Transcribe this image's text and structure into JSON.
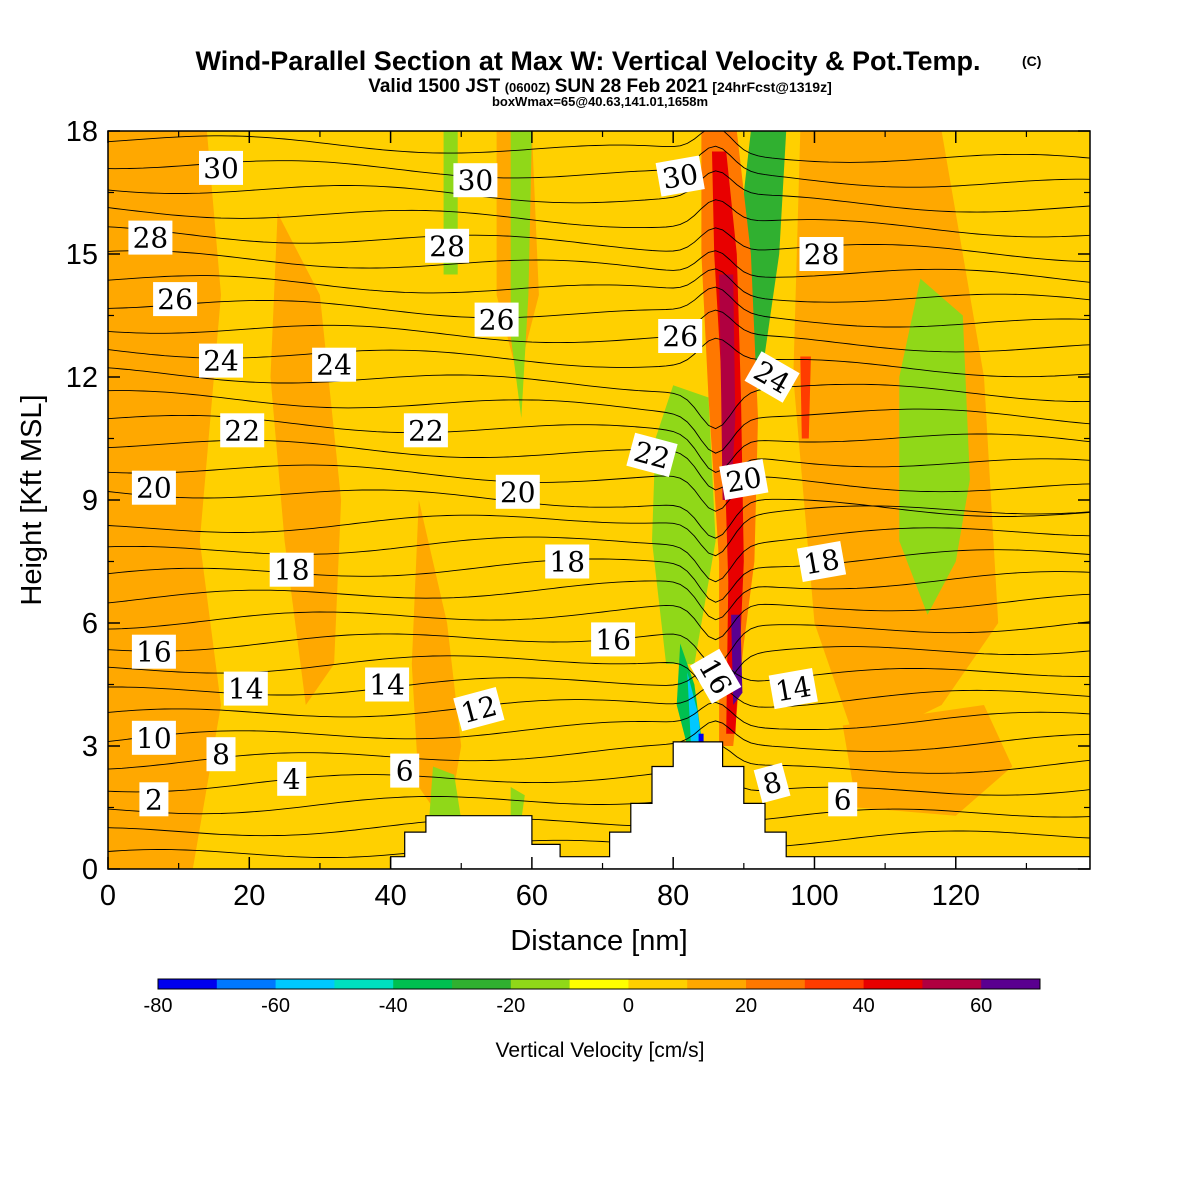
{
  "header": {
    "title": "Wind-Parallel Section at Max W: Vertical Velocity & Pot.Temp.",
    "title_unit": "(C)",
    "subtitle_main": "Valid 1500 JST",
    "subtitle_utc": "(0600Z)",
    "subtitle_date": "SUN 28 Feb 2021",
    "subtitle_fcst": "[24hrFcst@1319z]",
    "info": "boxWmax=65@40.63,141.01,1658m"
  },
  "chart_data": {
    "type": "heatmap",
    "title": "Wind-Parallel Section at Max W: Vertical Velocity & Pot.Temp. (C)",
    "xlabel": "Distance [nm]",
    "ylabel": "Height [Kft MSL]",
    "xlim": [
      0,
      139
    ],
    "ylim": [
      0,
      18
    ],
    "x_ticks": [
      "0",
      "20",
      "40",
      "60",
      "80",
      "100",
      "120"
    ],
    "y_ticks": [
      "0",
      "3",
      "6",
      "9",
      "12",
      "15",
      "18"
    ],
    "colorbar": {
      "label": "Vertical Velocity [cm/s]",
      "min": -80,
      "max": 70,
      "step": 10,
      "tick_labels": [
        "-80",
        "-60",
        "-40",
        "-20",
        "0",
        "20",
        "40",
        "60"
      ],
      "colors": [
        "#0000ee",
        "#0078ff",
        "#00c8ff",
        "#00e0c0",
        "#00c050",
        "#30b030",
        "#90d818",
        "#ffff00",
        "#ffd000",
        "#ffa800",
        "#ff7800",
        "#ff3c00",
        "#e80000",
        "#b00040",
        "#5a0090"
      ]
    },
    "background_value": 5,
    "w_regions": [
      {
        "value": 15,
        "poly": [
          [
            0,
            18
          ],
          [
            14,
            18
          ],
          [
            16,
            14
          ],
          [
            13,
            8
          ],
          [
            16,
            4
          ],
          [
            12,
            0
          ],
          [
            0,
            0
          ]
        ]
      },
      {
        "value": 15,
        "poly": [
          [
            24,
            16
          ],
          [
            30,
            14
          ],
          [
            33,
            9
          ],
          [
            32,
            5
          ],
          [
            28,
            4
          ],
          [
            25,
            8
          ],
          [
            23,
            12
          ]
        ]
      },
      {
        "value": 15,
        "poly": [
          [
            44,
            9
          ],
          [
            48,
            6
          ],
          [
            50,
            3
          ],
          [
            48,
            1
          ],
          [
            44,
            2
          ],
          [
            43,
            5
          ]
        ]
      },
      {
        "value": 15,
        "poly": [
          [
            55,
            18
          ],
          [
            60,
            18
          ],
          [
            61,
            14
          ],
          [
            58,
            12
          ],
          [
            55,
            14
          ]
        ]
      },
      {
        "value": 15,
        "poly": [
          [
            98,
            18
          ],
          [
            118,
            18
          ],
          [
            124,
            12
          ],
          [
            126,
            6
          ],
          [
            118,
            4
          ],
          [
            106,
            3
          ],
          [
            100,
            6
          ],
          [
            97,
            12
          ]
        ]
      },
      {
        "value": 15,
        "poly": [
          [
            104,
            3.5
          ],
          [
            124,
            4
          ],
          [
            128,
            2.5
          ],
          [
            120,
            1.3
          ],
          [
            106,
            1.5
          ]
        ]
      },
      {
        "value": -15,
        "poly": [
          [
            47.5,
            18
          ],
          [
            49.5,
            18
          ],
          [
            49.5,
            14.5
          ],
          [
            47.5,
            14.5
          ]
        ]
      },
      {
        "value": -15,
        "poly": [
          [
            57,
            18
          ],
          [
            60,
            18
          ],
          [
            59.5,
            14
          ],
          [
            58.5,
            11
          ],
          [
            57,
            13
          ]
        ]
      },
      {
        "value": -15,
        "poly": [
          [
            80,
            11.8
          ],
          [
            85,
            11.5
          ],
          [
            86,
            8
          ],
          [
            83,
            5
          ],
          [
            79,
            5
          ],
          [
            77,
            8
          ],
          [
            77.5,
            10.5
          ]
        ]
      },
      {
        "value": -15,
        "poly": [
          [
            115,
            14.4
          ],
          [
            121,
            13.5
          ],
          [
            122,
            9.5
          ],
          [
            120,
            7.5
          ],
          [
            116,
            6.2
          ],
          [
            112,
            8
          ],
          [
            112,
            12
          ]
        ]
      },
      {
        "value": -15,
        "poly": [
          [
            46,
            2.5
          ],
          [
            49,
            2.3
          ],
          [
            50,
            1.2
          ],
          [
            48,
            0.8
          ],
          [
            45.5,
            1.3
          ]
        ]
      },
      {
        "value": -15,
        "poly": [
          [
            57,
            2
          ],
          [
            59,
            1.8
          ],
          [
            58.5,
            1.2
          ],
          [
            57,
            1.3
          ]
        ]
      },
      {
        "value": -35,
        "poly": [
          [
            81,
            5.5
          ],
          [
            83,
            4.5
          ],
          [
            84,
            3.2
          ],
          [
            82,
            3
          ],
          [
            80.5,
            4
          ]
        ]
      },
      {
        "value": -60,
        "poly": [
          [
            82,
            4.8
          ],
          [
            83.5,
            3.8
          ],
          [
            84,
            3.1
          ],
          [
            82.5,
            3.1
          ]
        ]
      },
      {
        "value": -25,
        "poly": [
          [
            91,
            18
          ],
          [
            96,
            18
          ],
          [
            95,
            15
          ],
          [
            92.5,
            12
          ],
          [
            89.5,
            12
          ],
          [
            89,
            15
          ]
        ]
      },
      {
        "value": 25,
        "poly": [
          [
            84,
            18
          ],
          [
            89,
            18
          ],
          [
            91,
            15
          ],
          [
            92,
            11
          ],
          [
            91.5,
            7.5
          ],
          [
            90,
            5.5
          ],
          [
            88.5,
            3
          ],
          [
            86.5,
            3
          ],
          [
            86.5,
            7.5
          ],
          [
            85,
            11.5
          ],
          [
            84,
            15
          ]
        ]
      },
      {
        "value": 45,
        "poly": [
          [
            85.5,
            17.5
          ],
          [
            87.5,
            17.5
          ],
          [
            89,
            15
          ],
          [
            89.6,
            11.5
          ],
          [
            90,
            7.5
          ],
          [
            89.5,
            5.5
          ],
          [
            88.8,
            3.3
          ],
          [
            87.5,
            3.3
          ],
          [
            87.8,
            7
          ],
          [
            87,
            11.5
          ],
          [
            85.8,
            15
          ]
        ]
      },
      {
        "value": 55,
        "poly": [
          [
            86.5,
            14.5
          ],
          [
            88.5,
            14.5
          ],
          [
            88.8,
            11
          ],
          [
            88.2,
            9
          ],
          [
            87,
            9
          ],
          [
            86.8,
            11.5
          ]
        ]
      },
      {
        "value": 65,
        "poly": [
          [
            88.2,
            6.2
          ],
          [
            89.5,
            6.2
          ],
          [
            89.8,
            4.3
          ],
          [
            88.5,
            4
          ]
        ]
      },
      {
        "value": 35,
        "poly": [
          [
            98,
            12.5
          ],
          [
            99.5,
            12.5
          ],
          [
            99.2,
            10.5
          ],
          [
            98.2,
            10.5
          ]
        ]
      },
      {
        "value": -75,
        "poly": [
          [
            83.6,
            3.3
          ],
          [
            84.3,
            3.3
          ],
          [
            84.3,
            2.6
          ],
          [
            83.6,
            2.6
          ]
        ]
      }
    ],
    "terrain": [
      [
        40,
        0
      ],
      [
        40,
        0.3
      ],
      [
        42,
        0.3
      ],
      [
        42,
        0.9
      ],
      [
        45,
        0.9
      ],
      [
        45,
        1.3
      ],
      [
        60,
        1.3
      ],
      [
        60,
        0.6
      ],
      [
        64,
        0.6
      ],
      [
        64,
        0.3
      ],
      [
        71,
        0.3
      ],
      [
        71,
        0.9
      ],
      [
        74,
        0.9
      ],
      [
        74,
        1.6
      ],
      [
        77,
        1.6
      ],
      [
        77,
        2.5
      ],
      [
        80,
        2.5
      ],
      [
        80,
        3.1
      ],
      [
        87,
        3.1
      ],
      [
        87,
        2.5
      ],
      [
        90,
        2.5
      ],
      [
        90,
        1.6
      ],
      [
        93,
        1.6
      ],
      [
        93,
        0.9
      ],
      [
        96,
        0.9
      ],
      [
        96,
        0.3
      ],
      [
        139,
        0.3
      ],
      [
        139,
        0
      ]
    ],
    "theta_contours": {
      "min": 1,
      "max": 31,
      "step": 1,
      "ridge_center_x": 86,
      "labels": [
        {
          "text": "30",
          "x": 16,
          "y": 17.1,
          "rot": 0
        },
        {
          "text": "30",
          "x": 52,
          "y": 16.8,
          "rot": 0
        },
        {
          "text": "30",
          "x": 81,
          "y": 16.9,
          "rot": -10
        },
        {
          "text": "28",
          "x": 6,
          "y": 15.4,
          "rot": 0
        },
        {
          "text": "28",
          "x": 48,
          "y": 15.2,
          "rot": 0
        },
        {
          "text": "28",
          "x": 101,
          "y": 15.0,
          "rot": 0
        },
        {
          "text": "26",
          "x": 9.5,
          "y": 13.9,
          "rot": 0
        },
        {
          "text": "26",
          "x": 55,
          "y": 13.4,
          "rot": 0
        },
        {
          "text": "26",
          "x": 81,
          "y": 13.0,
          "rot": 0
        },
        {
          "text": "24",
          "x": 16,
          "y": 12.4,
          "rot": 0
        },
        {
          "text": "24",
          "x": 32,
          "y": 12.3,
          "rot": 0
        },
        {
          "text": "24",
          "x": 94,
          "y": 12.0,
          "rot": 30
        },
        {
          "text": "22",
          "x": 19,
          "y": 10.7,
          "rot": 0
        },
        {
          "text": "22",
          "x": 45,
          "y": 10.7,
          "rot": 0
        },
        {
          "text": "22",
          "x": 77,
          "y": 10.1,
          "rot": 15
        },
        {
          "text": "20",
          "x": 6.5,
          "y": 9.3,
          "rot": 0
        },
        {
          "text": "20",
          "x": 58,
          "y": 9.2,
          "rot": 0
        },
        {
          "text": "20",
          "x": 90,
          "y": 9.5,
          "rot": -10
        },
        {
          "text": "18",
          "x": 26,
          "y": 7.3,
          "rot": 0
        },
        {
          "text": "18",
          "x": 65,
          "y": 7.5,
          "rot": 0
        },
        {
          "text": "18",
          "x": 101,
          "y": 7.5,
          "rot": -10
        },
        {
          "text": "16",
          "x": 6.5,
          "y": 5.3,
          "rot": 0
        },
        {
          "text": "16",
          "x": 71.5,
          "y": 5.6,
          "rot": 0
        },
        {
          "text": "16",
          "x": 86,
          "y": 4.7,
          "rot": 60
        },
        {
          "text": "14",
          "x": 19.5,
          "y": 4.4,
          "rot": 0
        },
        {
          "text": "14",
          "x": 39.5,
          "y": 4.5,
          "rot": 0
        },
        {
          "text": "14",
          "x": 97,
          "y": 4.4,
          "rot": -10
        },
        {
          "text": "12",
          "x": 52.5,
          "y": 3.9,
          "rot": -15
        },
        {
          "text": "10",
          "x": 6.5,
          "y": 3.2,
          "rot": 0
        },
        {
          "text": "8",
          "x": 16,
          "y": 2.8,
          "rot": 0
        },
        {
          "text": "8",
          "x": 94,
          "y": 2.1,
          "rot": -15
        },
        {
          "text": "6",
          "x": 42,
          "y": 2.4,
          "rot": 0
        },
        {
          "text": "6",
          "x": 104,
          "y": 1.7,
          "rot": 0
        },
        {
          "text": "4",
          "x": 26,
          "y": 2.2,
          "rot": 0
        },
        {
          "text": "2",
          "x": 6.5,
          "y": 1.7,
          "rot": 0
        }
      ]
    }
  }
}
